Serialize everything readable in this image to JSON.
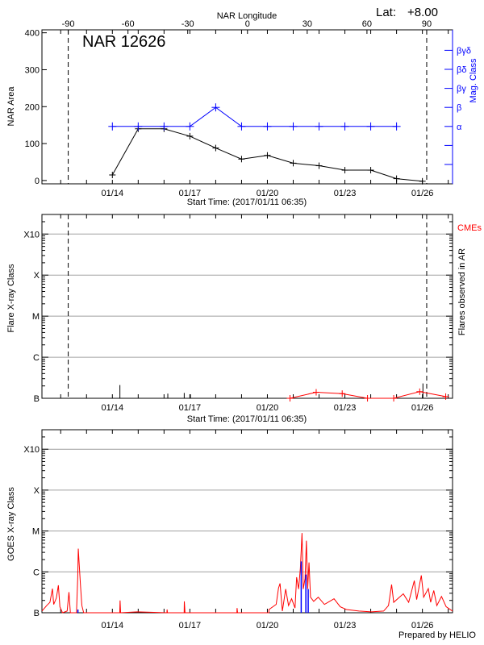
{
  "header": {
    "lat_label": "Lat:",
    "lat_value": "+8.00",
    "region_title": "NAR 12626"
  },
  "footer": {
    "credit": "Prepared by HELIO"
  },
  "colors": {
    "area": "#000000",
    "mag": "#0000ff",
    "cme": "#ff0000",
    "goes": "#ff0000",
    "goes_flare": "#0000ff",
    "grid": "#a0a0a0"
  },
  "time_range": [
    "2017-01-11 06:35",
    "2017-01-27 04:00"
  ],
  "date_ticks": [
    "01/14",
    "01/17",
    "01/20",
    "01/23",
    "01/26"
  ],
  "chart_data": [
    {
      "type": "line",
      "xlabel": "Start Time: (2017/01/11 06:35)",
      "ylabel": "NAR Area",
      "y2label": "Mag. Class",
      "top_xlabel": "NAR Longitude",
      "top_ticks": [
        "-90",
        "-60",
        "-30",
        "0",
        "30",
        "60",
        "90"
      ],
      "longitude_limits_dates": [
        "2017-01-12 07:00",
        "2017-01-26 04:00"
      ],
      "ylim": [
        -9,
        408
      ],
      "yticks": [
        "0",
        "100",
        "200",
        "300",
        "400"
      ],
      "mag_ticks": [
        "",
        "",
        "α",
        "β",
        "βγ",
        "βδ",
        "βγδ"
      ],
      "x": [
        "2017-01-14 00:00",
        "2017-01-15 00:00",
        "2017-01-16 00:00",
        "2017-01-17 00:00",
        "2017-01-18 00:00",
        "2017-01-19 00:00",
        "2017-01-20 00:00",
        "2017-01-21 00:00",
        "2017-01-22 00:00",
        "2017-01-23 00:00",
        "2017-01-24 00:00",
        "2017-01-25 00:00",
        "2017-01-26 00:00"
      ],
      "series": [
        {
          "key": "area",
          "values": [
            15,
            140,
            140,
            120,
            88,
            58,
            68,
            47,
            40,
            28,
            28,
            5,
            -2
          ]
        },
        {
          "key": "mag_class",
          "values": [
            "α",
            "α",
            "α",
            "α",
            "β",
            "α",
            "α",
            "α",
            "α",
            "α",
            "α",
            "α",
            null
          ]
        }
      ]
    },
    {
      "type": "line",
      "xlabel": "Start Time: (2017/01/11 06:35)",
      "ylabel": "Flare X-ray Class",
      "y2label": "Flares observed in AR",
      "legend": "CMEs",
      "yscale": "log",
      "ylim": [
        1e-07,
        0.003
      ],
      "yticks": [
        {
          "label": "B",
          "value": 1e-07
        },
        {
          "label": "C",
          "value": 1e-06
        },
        {
          "label": "M",
          "value": 1e-05
        },
        {
          "label": "X",
          "value": 0.0001
        },
        {
          "label": "X10",
          "value": 0.001
        }
      ],
      "flares": [
        [
          "2017-01-14 07:00",
          2.1e-07
        ],
        [
          "2017-01-16 03:30",
          1.3e-07
        ],
        [
          "2017-01-16 18:45",
          1.35e-07
        ],
        [
          "2017-01-17 00:30",
          1.25e-07
        ],
        [
          "2017-01-26 00:30",
          2.3e-07
        ]
      ],
      "cmes": [
        [
          "2017-01-20 21:00",
          1e-07
        ],
        [
          "2017-01-21 21:20",
          1.4e-07
        ],
        [
          "2017-01-22 21:30",
          1.3e-07
        ],
        [
          "2017-01-23 21:00",
          1e-07
        ],
        [
          "2017-01-24 21:20",
          1e-07
        ],
        [
          "2017-01-25 21:30",
          1.45e-07
        ],
        [
          "2017-01-26 21:40",
          1.1e-07
        ]
      ]
    },
    {
      "type": "line",
      "ylabel": "GOES X-ray Class",
      "yscale": "log",
      "ylim": [
        1e-07,
        0.003
      ],
      "yticks": [
        {
          "label": "B",
          "value": 1e-07
        },
        {
          "label": "C",
          "value": 1e-06
        },
        {
          "label": "M",
          "value": 1e-05
        },
        {
          "label": "X",
          "value": 0.0001
        },
        {
          "label": "X10",
          "value": 0.001
        }
      ],
      "goes": [
        [
          "2017-01-11 06:35",
          1.1e-07
        ],
        [
          "2017-01-11 11:00",
          1.5e-07
        ],
        [
          "2017-01-11 14:00",
          1.8e-07
        ],
        [
          "2017-01-11 16:20",
          3.9e-07
        ],
        [
          "2017-01-11 17:30",
          1.6e-07
        ],
        [
          "2017-01-11 20:00",
          2.3e-07
        ],
        [
          "2017-01-11 21:50",
          4.7e-07
        ],
        [
          "2017-01-11 23:15",
          1.4e-07
        ],
        [
          "2017-01-12 01:40",
          1e-07
        ],
        [
          "2017-01-12 06:00",
          1.1e-07
        ],
        [
          "2017-01-12 07:40",
          3.2e-07
        ],
        [
          "2017-01-12 09:00",
          1e-07
        ],
        [
          "2017-01-12 14:40",
          1e-07
        ],
        [
          "2017-01-12 15:50",
          7.4e-07
        ],
        [
          "2017-01-12 16:20",
          3.7e-06
        ],
        [
          "2017-01-12 17:15",
          1.45e-06
        ],
        [
          "2017-01-12 18:30",
          4.2e-07
        ],
        [
          "2017-01-12 19:40",
          1.5e-07
        ],
        [
          "2017-01-12 21:20",
          1e-07
        ],
        [
          "2017-01-14 06:50",
          1e-07
        ],
        [
          "2017-01-14 07:10",
          2e-07
        ],
        [
          "2017-01-14 07:40",
          1e-07
        ],
        [
          "2017-01-14 23:10",
          1.05e-07
        ],
        [
          "2017-01-16 02:40",
          1e-07
        ],
        [
          "2017-01-16 02:50",
          1.2e-07
        ],
        [
          "2017-01-16 03:10",
          1e-07
        ],
        [
          "2017-01-16 18:40",
          1e-07
        ],
        [
          "2017-01-16 18:50",
          1.9e-07
        ],
        [
          "2017-01-16 19:30",
          1e-07
        ],
        [
          "2017-01-18 19:40",
          1e-07
        ],
        [
          "2017-01-18 19:50",
          1.3e-07
        ],
        [
          "2017-01-18 20:20",
          1e-07
        ],
        [
          "2017-01-20 01:20",
          1e-07
        ],
        [
          "2017-01-20 01:30",
          1.2e-07
        ],
        [
          "2017-01-20 08:10",
          1.6e-07
        ],
        [
          "2017-01-20 10:20",
          4e-07
        ],
        [
          "2017-01-20 11:45",
          5.2e-07
        ],
        [
          "2017-01-20 13:55",
          1.1e-07
        ],
        [
          "2017-01-20 17:00",
          3.8e-07
        ],
        [
          "2017-01-20 19:40",
          1.5e-07
        ],
        [
          "2017-01-20 22:30",
          2.2e-07
        ],
        [
          "2017-01-21 01:40",
          1.3e-07
        ],
        [
          "2017-01-21 03:10",
          7.4e-07
        ],
        [
          "2017-01-21 05:00",
          3.8e-07
        ],
        [
          "2017-01-21 06:40",
          1.25e-06
        ],
        [
          "2017-01-21 08:10",
          8.9e-06
        ],
        [
          "2017-01-21 09:20",
          3.8e-07
        ],
        [
          "2017-01-21 11:00",
          6.9e-07
        ],
        [
          "2017-01-21 12:15",
          5.8e-06
        ],
        [
          "2017-01-21 13:25",
          3.8e-07
        ],
        [
          "2017-01-21 14:40",
          1.7e-06
        ],
        [
          "2017-01-21 16:05",
          2.4e-07
        ],
        [
          "2017-01-21 19:00",
          1.9e-07
        ],
        [
          "2017-01-21 23:15",
          2.4e-07
        ],
        [
          "2017-01-22 05:00",
          1.6e-07
        ],
        [
          "2017-01-22 13:55",
          2.2e-07
        ],
        [
          "2017-01-22 19:40",
          1.4e-07
        ],
        [
          "2017-01-23 01:25",
          1.2e-07
        ],
        [
          "2017-01-23 13:00",
          1.1e-07
        ],
        [
          "2017-01-24 00:30",
          1.05e-07
        ],
        [
          "2017-01-24 12:00",
          1.1e-07
        ],
        [
          "2017-01-24 16:30",
          1.5e-07
        ],
        [
          "2017-01-24 19:25",
          4.9e-07
        ],
        [
          "2017-01-24 21:20",
          1.8e-07
        ],
        [
          "2017-01-25 02:40",
          2.4e-07
        ],
        [
          "2017-01-25 06:15",
          2.9e-07
        ],
        [
          "2017-01-25 11:15",
          1.8e-07
        ],
        [
          "2017-01-25 16:30",
          6.1e-07
        ],
        [
          "2017-01-25 18:40",
          2.1e-07
        ],
        [
          "2017-01-25 23:00",
          8.2e-07
        ],
        [
          "2017-01-26 01:10",
          2.4e-07
        ],
        [
          "2017-01-26 05:30",
          3.9e-07
        ],
        [
          "2017-01-26 07:40",
          1.8e-07
        ],
        [
          "2017-01-26 10:35",
          3.5e-07
        ],
        [
          "2017-01-26 13:25",
          1.5e-07
        ],
        [
          "2017-01-26 17:45",
          2.5e-07
        ],
        [
          "2017-01-26 22:05",
          1.4e-07
        ],
        [
          "2017-01-27 04:00",
          1.1e-07
        ]
      ],
      "goes_flares": [
        [
          "2017-01-12 16:00",
          1.2e-07
        ],
        [
          "2017-01-21 07:25",
          1.8e-06
        ],
        [
          "2017-01-21 11:45",
          8.6e-07
        ],
        [
          "2017-01-21 13:55",
          3.8e-07
        ]
      ]
    }
  ]
}
